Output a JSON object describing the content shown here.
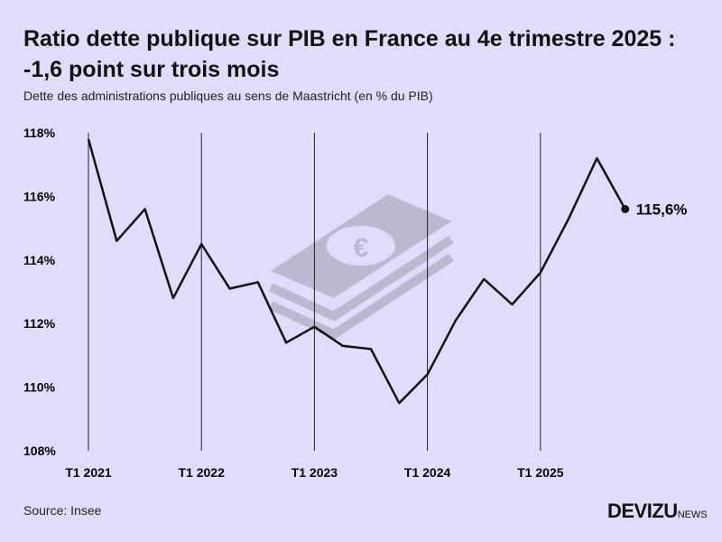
{
  "title": "Ratio dette publique sur PIB en France au 4e trimestre 2025 : -1,6 point sur trois mois",
  "subtitle": "Dette des administrations publiques au sens de Maastricht (en % du PIB)",
  "source": "Source: Insee",
  "logo": {
    "main": "DEVIZU",
    "suffix": "NEWS"
  },
  "colors": {
    "background": "#e2dcfa",
    "line": "#111111",
    "watermark": "#b9b3cc"
  },
  "chart_data": {
    "type": "line",
    "title": "Ratio dette publique sur PIB en France au 4e trimestre 2025 : -1,6 point sur trois mois",
    "subtitle": "Dette des administrations publiques au sens de Maastricht (en % du PIB)",
    "x": [
      "T1 2021",
      "T2 2021",
      "T3 2021",
      "T4 2021",
      "T1 2022",
      "T2 2022",
      "T3 2022",
      "T4 2022",
      "T1 2023",
      "T2 2023",
      "T3 2023",
      "T4 2023",
      "T1 2024",
      "T2 2024",
      "T3 2024",
      "T4 2024",
      "T1 2025",
      "T2 2025",
      "T3 2025",
      "T4 2025"
    ],
    "series": [
      {
        "values": [
          117.8,
          114.6,
          115.6,
          112.8,
          114.5,
          113.1,
          113.3,
          111.4,
          111.9,
          111.3,
          111.2,
          109.5,
          110.4,
          112.1,
          113.4,
          112.6,
          113.6,
          115.3,
          117.2,
          115.6
        ]
      }
    ],
    "xticks": [
      "T1 2021",
      "T1 2022",
      "T1 2023",
      "T1 2024",
      "T1 2025"
    ],
    "yticks": [
      "108%",
      "110%",
      "112%",
      "114%",
      "116%",
      "118%"
    ],
    "ylim": [
      108,
      118
    ],
    "end_label": "115,6%",
    "grid": "vertical lines at each T1",
    "watermark_icon": "euro-banknotes-icon"
  }
}
